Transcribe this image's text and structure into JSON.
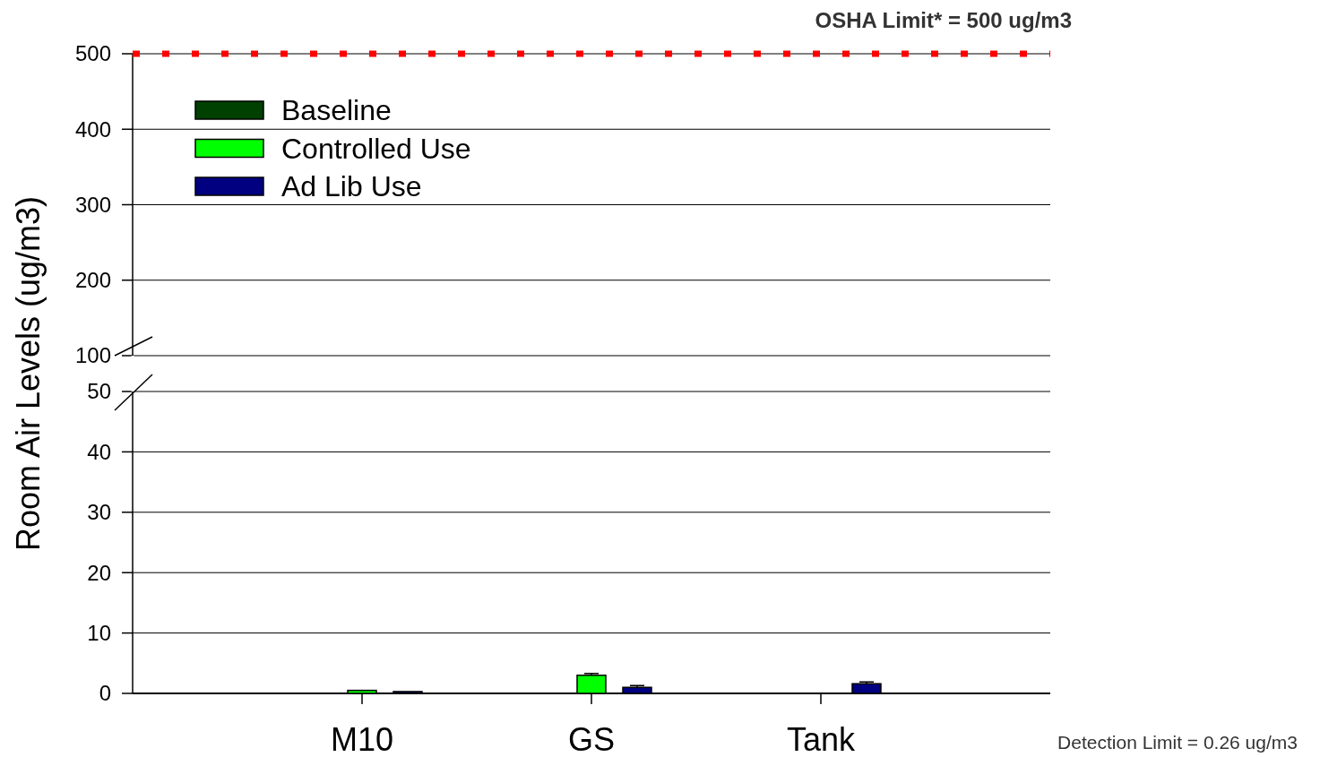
{
  "chart_data": [
    {
      "type": "bar",
      "categories": [
        null,
        null,
        null
      ],
      "ylim": [
        100,
        500
      ],
      "yticks": [
        100,
        200,
        300,
        400,
        500
      ],
      "grid": "y",
      "legend": "top left",
      "series": [
        {
          "name": "Baseline",
          "color": "#004000",
          "values": [
            null,
            null,
            null
          ]
        },
        {
          "name": "Controlled Use",
          "color": "#00ff00",
          "values": [
            null,
            null,
            null
          ]
        },
        {
          "name": "Ad Lib Use",
          "color": "#000080",
          "values": [
            null,
            null,
            null
          ]
        }
      ],
      "ref_lines": [
        {
          "axis": "y",
          "value": 500,
          "label": "OSHA Limit* = 500 ug/m3",
          "color": "#ff0000",
          "line_style": "dotted"
        }
      ]
    },
    {
      "type": "bar",
      "categories": [
        "M10",
        "GS",
        "Tank"
      ],
      "ylim": [
        0,
        50
      ],
      "yticks": [
        0,
        10,
        20,
        30,
        40,
        50
      ],
      "grid": "y",
      "ylabel": "Room Air Levels (ug/m3)",
      "series": [
        {
          "values": [
            null,
            null,
            null
          ]
        },
        {
          "color": "#00ff00",
          "values": [
            0.5,
            3.0,
            null
          ],
          "errors": [
            null,
            0.3,
            null
          ]
        },
        {
          "color": "#000080",
          "values": [
            0.3,
            1.0,
            1.6
          ],
          "errors": [
            null,
            0.3,
            0.3
          ]
        }
      ],
      "annotations": [
        "Detection Limit = 0.26 ug/m3"
      ]
    }
  ]
}
